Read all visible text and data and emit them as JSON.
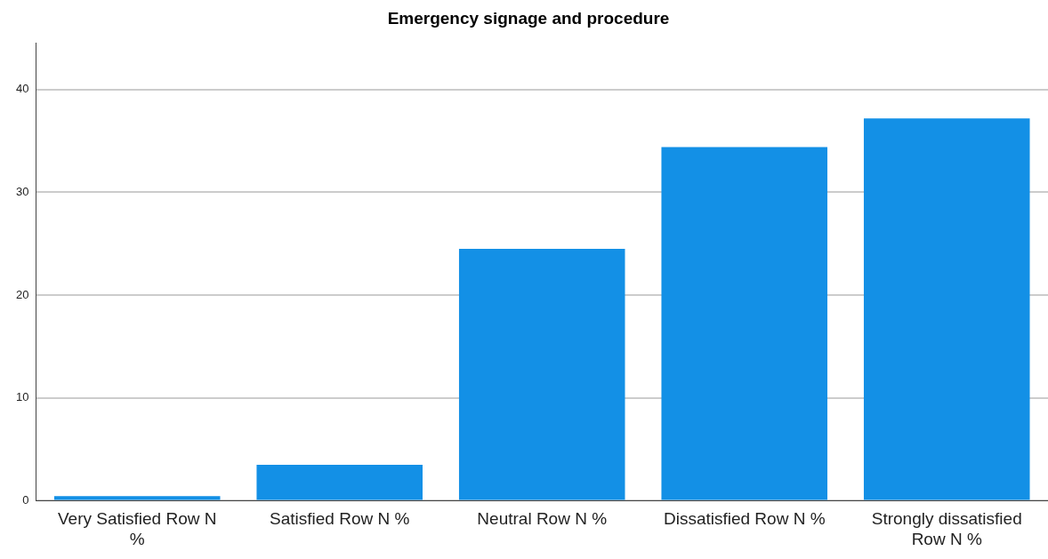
{
  "chart_data": {
    "type": "bar",
    "title": "Emergency signage and procedure",
    "categories": [
      "Very Satisfied Row N %",
      "Satisfied Row N %",
      "Neutral Row N %",
      "Dissatisfied Row N %",
      "Strongly dissatisfied Row N %"
    ],
    "values": [
      0.45,
      3.5,
      24.5,
      34.4,
      37.2
    ],
    "color": "#1390e6",
    "ylim": [
      0,
      44.5
    ],
    "yticks": [
      0,
      10,
      20,
      30,
      40
    ],
    "grid": "y",
    "legend": false
  }
}
